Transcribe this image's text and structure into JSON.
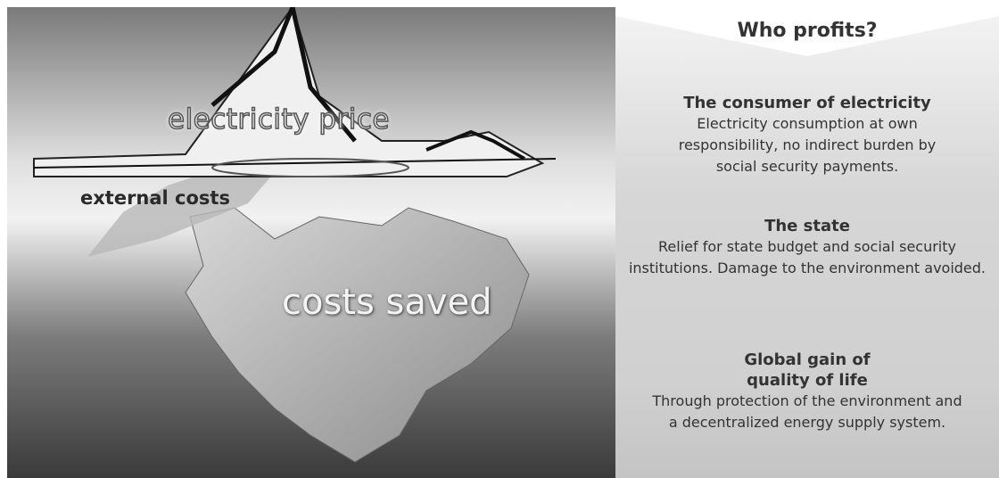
{
  "diagram": {
    "labels": {
      "top": "electricity price",
      "waterline": "external costs",
      "bottom": "costs saved"
    },
    "panel": {
      "title": "Who profits?",
      "sections": [
        {
          "heading": "The consumer of electricity",
          "body": "Electricity consumption at own responsibility, no indirect burden by social security payments."
        },
        {
          "heading": "The state",
          "body": "Relief for state budget and social security institutions. Damage to the environment avoided."
        },
        {
          "heading": "Global gain of quality of life",
          "body": "Through protection of the environment and a decentralized energy supply system."
        }
      ]
    }
  }
}
